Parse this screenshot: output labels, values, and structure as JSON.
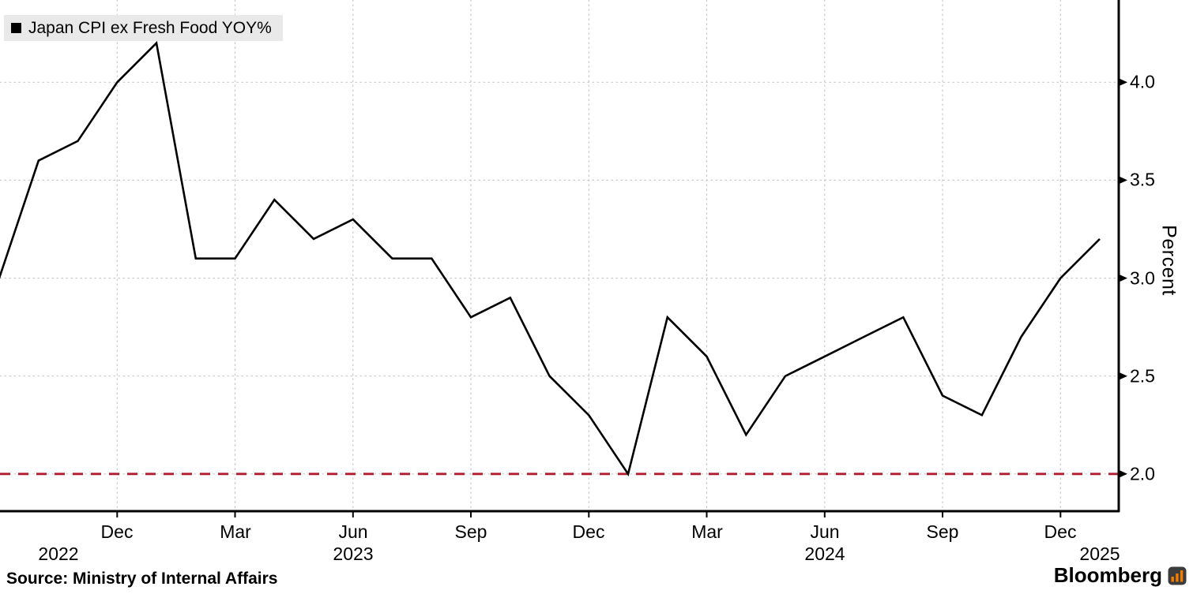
{
  "chart_data": {
    "type": "line",
    "title": "",
    "ylabel": "Percent",
    "xlabel": "",
    "grid": true,
    "legend_position": "top-left",
    "x": [
      "2022-09",
      "2022-10",
      "2022-11",
      "2022-12",
      "2023-01",
      "2023-02",
      "2023-03",
      "2023-04",
      "2023-05",
      "2023-06",
      "2023-07",
      "2023-08",
      "2023-09",
      "2023-10",
      "2023-11",
      "2023-12",
      "2024-01",
      "2024-02",
      "2024-03",
      "2024-04",
      "2024-05",
      "2024-06",
      "2024-07",
      "2024-08",
      "2024-09",
      "2024-10",
      "2024-11",
      "2024-12",
      "2025-01"
    ],
    "series": [
      {
        "name": "Japan CPI ex Fresh Food YOY%",
        "color": "#000000",
        "values": [
          3.0,
          3.6,
          3.7,
          4.0,
          4.2,
          3.1,
          3.1,
          3.4,
          3.2,
          3.3,
          3.1,
          3.1,
          2.8,
          2.9,
          2.5,
          2.3,
          2.0,
          2.8,
          2.6,
          2.2,
          2.5,
          2.6,
          2.7,
          2.8,
          2.4,
          2.3,
          2.7,
          3.0,
          3.2
        ]
      }
    ],
    "ylim": [
      1.81,
      4.42
    ],
    "yticks": [
      2.0,
      2.5,
      3.0,
      3.5,
      4.0
    ],
    "reference_line": {
      "value": 2.0,
      "color": "#b01c2e",
      "style": "dashed"
    },
    "x_tick_labels": [
      {
        "label": "Dec",
        "i": 3
      },
      {
        "label": "Mar",
        "i": 6
      },
      {
        "label": "Jun",
        "i": 9
      },
      {
        "label": "Sep",
        "i": 12
      },
      {
        "label": "Dec",
        "i": 15
      },
      {
        "label": "Mar",
        "i": 18
      },
      {
        "label": "Jun",
        "i": 21
      },
      {
        "label": "Sep",
        "i": 24
      },
      {
        "label": "Dec",
        "i": 27
      }
    ],
    "year_labels": [
      {
        "label": "2022",
        "i": 1.5
      },
      {
        "label": "2023",
        "i": 9
      },
      {
        "label": "2024",
        "i": 21
      },
      {
        "label": "2025",
        "i": 28
      }
    ]
  },
  "legend": {
    "label": "Japan CPI ex Fresh Food YOY%",
    "marker_color": "#000000"
  },
  "footer": {
    "source": "Source: Ministry of Internal Affairs",
    "brand": "Bloomberg"
  },
  "colors": {
    "line": "#000000",
    "reference": "#b01c2e",
    "grid": "#c8c8c8",
    "axis": "#000000",
    "legend_bg": "#e9e9e9",
    "brand_icon_bg": "#3c3c3c",
    "brand_icon_bars": "#f07d00"
  }
}
